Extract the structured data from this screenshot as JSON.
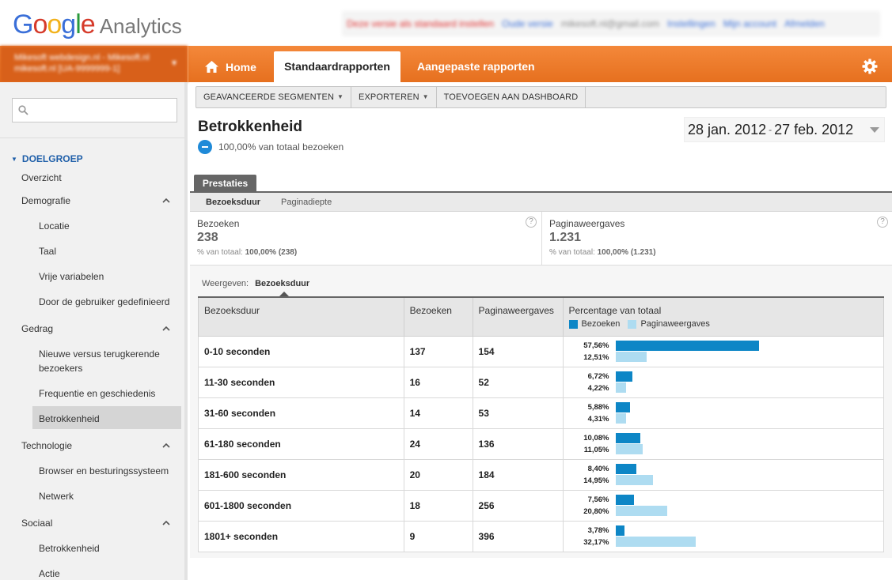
{
  "topbar": {
    "logo_product": "Analytics",
    "links": [
      "Deze versie als standaard instellen",
      "Oude versie",
      "mikesoft.nl@gmail.com",
      "Instellingen",
      "Mijn account",
      "Afmelden"
    ]
  },
  "account": {
    "line1": "Mikesoft webdesign.nl - Mikesoft.nl",
    "line2": "mikesoft.nl [UA-9999999-1]"
  },
  "nav": {
    "home": "Home",
    "standard_reports": "Standaardrapporten",
    "custom_reports": "Aangepaste rapporten"
  },
  "sidebar": {
    "search_placeholder": "",
    "section": "DOELGROEP",
    "items": [
      {
        "label": "Overzicht"
      },
      {
        "label": "Demografie"
      },
      {
        "label": "Locatie"
      },
      {
        "label": "Taal"
      },
      {
        "label": "Vrije variabelen"
      },
      {
        "label": "Door de gebruiker gedefinieerd"
      },
      {
        "label": "Gedrag"
      },
      {
        "label": "Nieuwe versus terugkerende bezoekers"
      },
      {
        "label": "Frequentie en geschiedenis"
      },
      {
        "label": "Betrokkenheid"
      },
      {
        "label": "Technologie"
      },
      {
        "label": "Browser en besturingssysteem"
      },
      {
        "label": "Netwerk"
      },
      {
        "label": "Sociaal"
      },
      {
        "label": "Betrokkenheid"
      },
      {
        "label": "Actie"
      }
    ]
  },
  "toolbar": {
    "segments": "GEAVANCEERDE SEGMENTEN",
    "export": "EXPORTEREN",
    "dashboard": "TOEVOEGEN AAN DASHBOARD"
  },
  "report": {
    "title": "Betrokkenheid",
    "segment_text": "100,00% van totaal bezoeken",
    "date_start": "28 jan. 2012",
    "date_sep": "-",
    "date_end": "27 feb. 2012"
  },
  "tabs": {
    "performance": "Prestaties",
    "sub_active": "Bezoeksduur",
    "sub_other": "Paginadiepte"
  },
  "metrics": [
    {
      "label": "Bezoeken",
      "value": "238",
      "sub_prefix": "% van totaal:",
      "sub_value": "100,00% (238)"
    },
    {
      "label": "Paginaweergaves",
      "value": "1.231",
      "sub_prefix": "% van totaal:",
      "sub_value": "100,00% (1.231)"
    }
  ],
  "view": {
    "label": "Weergeven:",
    "current": "Bezoeksduur"
  },
  "table": {
    "headers": [
      "Bezoeksduur",
      "Bezoeken",
      "Paginaweergaves",
      "Percentage van totaal"
    ],
    "legend": [
      "Bezoeken",
      "Paginaweergaves"
    ],
    "colors": {
      "visits": "#0d86c6",
      "pageviews": "#aedcf1"
    },
    "rows": [
      {
        "duration": "0-10 seconden",
        "visits": "137",
        "pageviews": "154",
        "pct_visits": "57,56%",
        "pct_pageviews": "12,51%",
        "frac_visits": 57.56,
        "frac_pageviews": 12.51
      },
      {
        "duration": "11-30 seconden",
        "visits": "16",
        "pageviews": "52",
        "pct_visits": "6,72%",
        "pct_pageviews": "4,22%",
        "frac_visits": 6.72,
        "frac_pageviews": 4.22
      },
      {
        "duration": "31-60 seconden",
        "visits": "14",
        "pageviews": "53",
        "pct_visits": "5,88%",
        "pct_pageviews": "4,31%",
        "frac_visits": 5.88,
        "frac_pageviews": 4.31
      },
      {
        "duration": "61-180 seconden",
        "visits": "24",
        "pageviews": "136",
        "pct_visits": "10,08%",
        "pct_pageviews": "11,05%",
        "frac_visits": 10.08,
        "frac_pageviews": 11.05
      },
      {
        "duration": "181-600 seconden",
        "visits": "20",
        "pageviews": "184",
        "pct_visits": "8,40%",
        "pct_pageviews": "14,95%",
        "frac_visits": 8.4,
        "frac_pageviews": 14.95
      },
      {
        "duration": "601-1800 seconden",
        "visits": "18",
        "pageviews": "256",
        "pct_visits": "7,56%",
        "pct_pageviews": "20,80%",
        "frac_visits": 7.56,
        "frac_pageviews": 20.8
      },
      {
        "duration": "1801+ seconden",
        "visits": "9",
        "pageviews": "396",
        "pct_visits": "3,78%",
        "pct_pageviews": "32,17%",
        "frac_visits": 3.78,
        "frac_pageviews": 32.17
      }
    ]
  }
}
